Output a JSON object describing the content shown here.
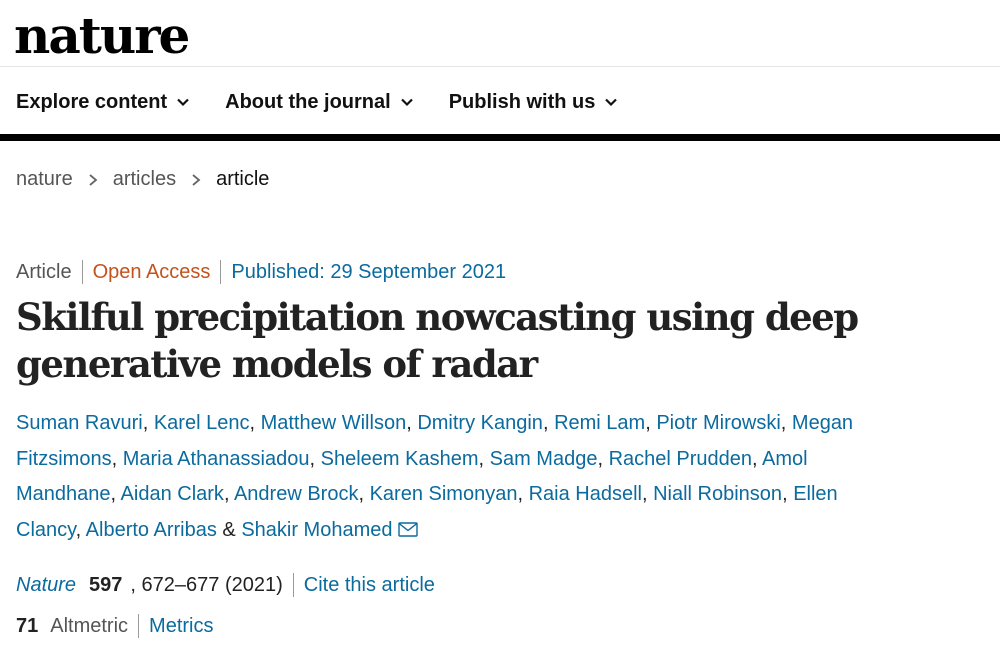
{
  "site": {
    "logo": "nature"
  },
  "nav": [
    {
      "label": "Explore content"
    },
    {
      "label": "About the journal"
    },
    {
      "label": "Publish with us"
    }
  ],
  "breadcrumb": [
    "nature",
    "articles",
    "article"
  ],
  "meta": {
    "type": "Article",
    "access": "Open Access",
    "published": "Published: 29 September 2021"
  },
  "title": "Skilful precipitation nowcasting using deep generative models of radar",
  "authors": [
    "Suman Ravuri",
    "Karel Lenc",
    "Matthew Willson",
    "Dmitry Kangin",
    "Remi Lam",
    "Piotr Mirowski",
    "Megan Fitzsimons",
    "Maria Athanassiadou",
    "Sheleem Kashem",
    "Sam Madge",
    "Rachel Prudden",
    "Amol Mandhane",
    "Aidan Clark",
    "Andrew Brock",
    "Karen Simonyan",
    "Raia Hadsell",
    "Niall Robinson",
    "Ellen Clancy",
    "Alberto Arribas",
    "Shakir Mohamed"
  ],
  "author_comma": ",",
  "author_and": "&",
  "citation": {
    "journal": "Nature",
    "volume": "597",
    "pages_year": ", 672–677 (2021)",
    "cite_label": "Cite this article"
  },
  "metrics": {
    "altmetric_score": "71",
    "altmetric_label": "Altmetric",
    "metrics_label": "Metrics"
  },
  "icons": {
    "nav_chevron": "chevron-down-icon",
    "breadcrumb_sep": "chevron-right-icon",
    "corresponding": "envelope-icon"
  },
  "colors": {
    "link": "#0b6a9e",
    "open_access": "#c4521c",
    "bar": "#000000"
  }
}
